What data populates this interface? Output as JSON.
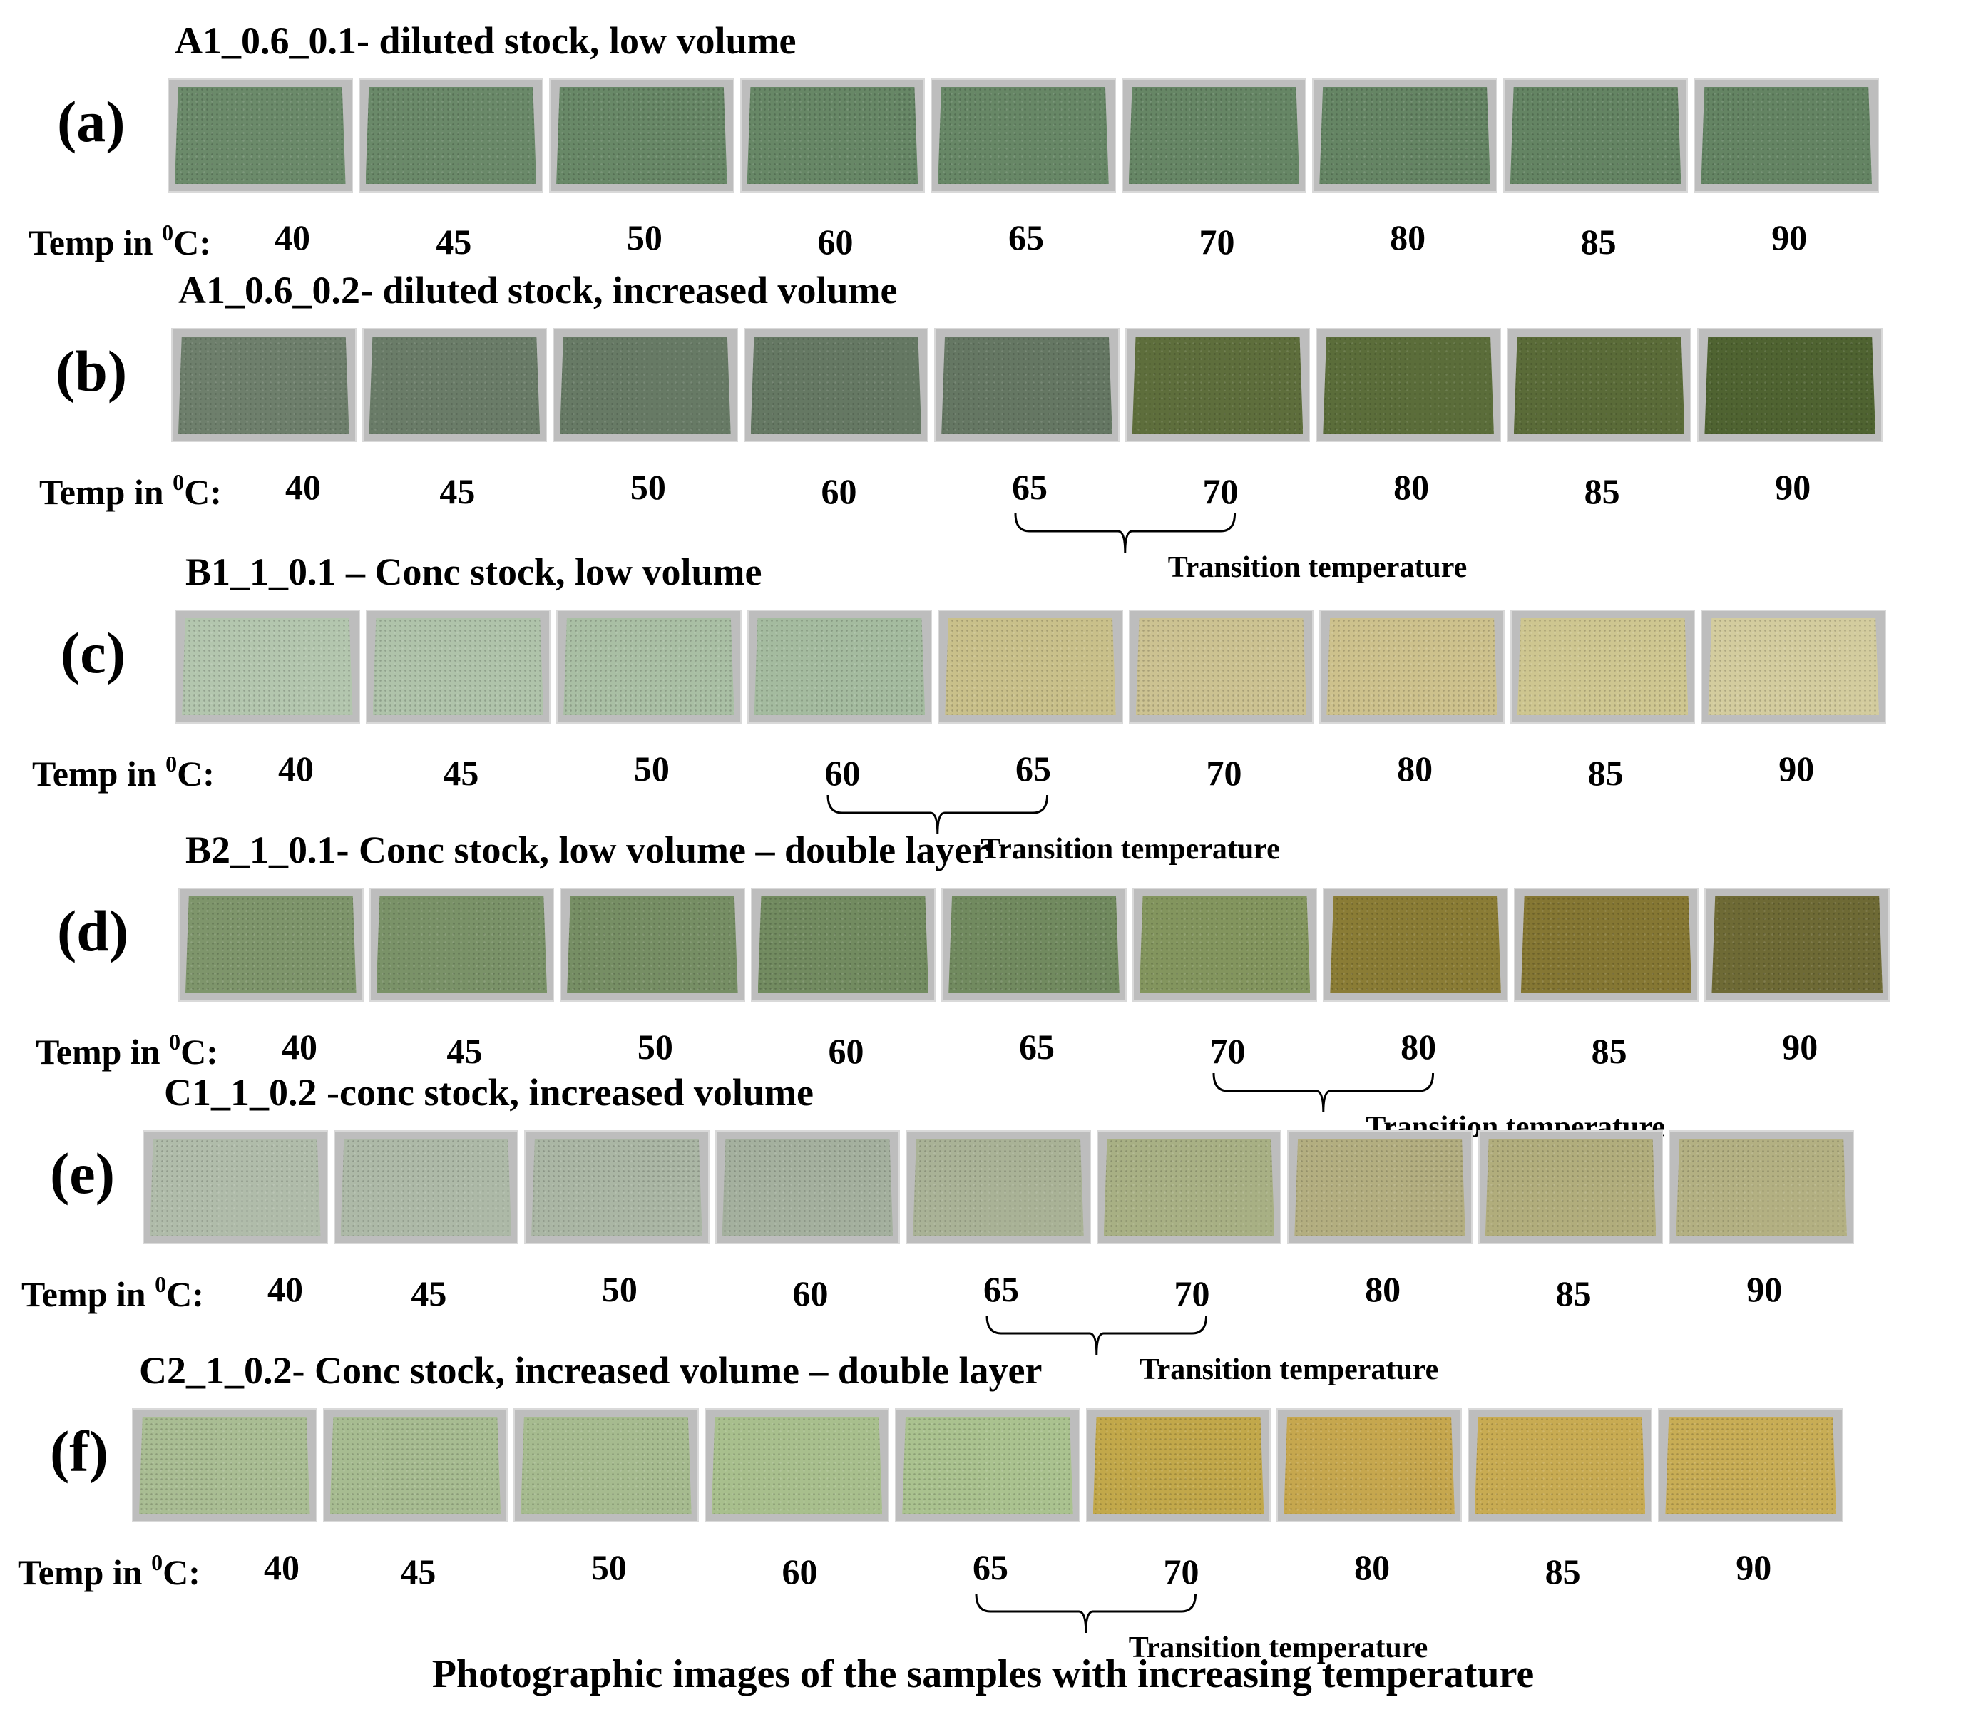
{
  "temp_prefix_text": "Temp in ",
  "temp_prefix_sup": "0",
  "temp_prefix_suffix": "C:",
  "transition_label": "Transition temperature",
  "caption": "Photographic images of the samples with increasing temperature",
  "panels": [
    {
      "label": "(a)",
      "title": "A1_0.6_0.1- diluted stock, low volume",
      "temps": [
        "40",
        "45",
        "50",
        "60",
        "65",
        "70",
        "80",
        "85",
        "90"
      ],
      "colors": [
        "#6b8a6a",
        "#6a8969",
        "#688867",
        "#678766",
        "#678766",
        "#668665",
        "#658564",
        "#648463",
        "#648463"
      ],
      "transition": null
    },
    {
      "label": "(b)",
      "title": "A1_0.6_0.2- diluted stock, increased volume",
      "temps": [
        "40",
        "45",
        "50",
        "60",
        "65",
        "70",
        "80",
        "85",
        "90"
      ],
      "colors": [
        "#6e7f6c",
        "#6a7c68",
        "#677a65",
        "#657863",
        "#657763",
        "#5e6e3c",
        "#5b6d3a",
        "#5a6b38",
        "#4f6331"
      ],
      "transition": {
        "from": "65",
        "to": "70"
      }
    },
    {
      "label": "(c)",
      "title": "B1_1_0.1 – Conc stock, low volume",
      "temps": [
        "40",
        "45",
        "50",
        "60",
        "65",
        "70",
        "80",
        "85",
        "90"
      ],
      "colors": [
        "#b3c6ae",
        "#afc3aa",
        "#a9bfa4",
        "#a4bb9f",
        "#c9c08a",
        "#ccc291",
        "#cdc18c",
        "#cec690",
        "#d3cc9e"
      ],
      "transition": {
        "from": "60",
        "to": "65"
      }
    },
    {
      "label": "(d)",
      "title": "B2_1_0.1- Conc stock, low volume – double layer",
      "temps": [
        "40",
        "45",
        "50",
        "60",
        "65",
        "70",
        "80",
        "85",
        "90"
      ],
      "colors": [
        "#7e956b",
        "#7a9268",
        "#768e64",
        "#728b60",
        "#718a5f",
        "#83955e",
        "#8a7c35",
        "#857733",
        "#6e6a35"
      ],
      "transition": {
        "from": "70",
        "to": "80"
      }
    },
    {
      "label": "(e)",
      "title": "C1_1_0.2 -conc stock, increased volume",
      "temps": [
        "40",
        "45",
        "50",
        "60",
        "65",
        "70",
        "80",
        "85",
        "90"
      ],
      "colors": [
        "#b0bcaa",
        "#adb9a7",
        "#aab6a4",
        "#a4b09e",
        "#a9b296",
        "#a8b084",
        "#b3ae80",
        "#b1ad7c",
        "#b3b082"
      ],
      "transition": {
        "from": "65",
        "to": "70"
      }
    },
    {
      "label": "(f)",
      "title": "C2_1_0.2- Conc stock, increased volume – double layer",
      "temps": [
        "40",
        "45",
        "50",
        "60",
        "65",
        "70",
        "80",
        "85",
        "90"
      ],
      "colors": [
        "#a9bd93",
        "#a7bc91",
        "#a6bb8f",
        "#a8bf8d",
        "#aac28f",
        "#c2a84a",
        "#c6a74e",
        "#c8ab52",
        "#c8ad55"
      ],
      "transition": {
        "from": "65",
        "to": "70"
      }
    }
  ]
}
